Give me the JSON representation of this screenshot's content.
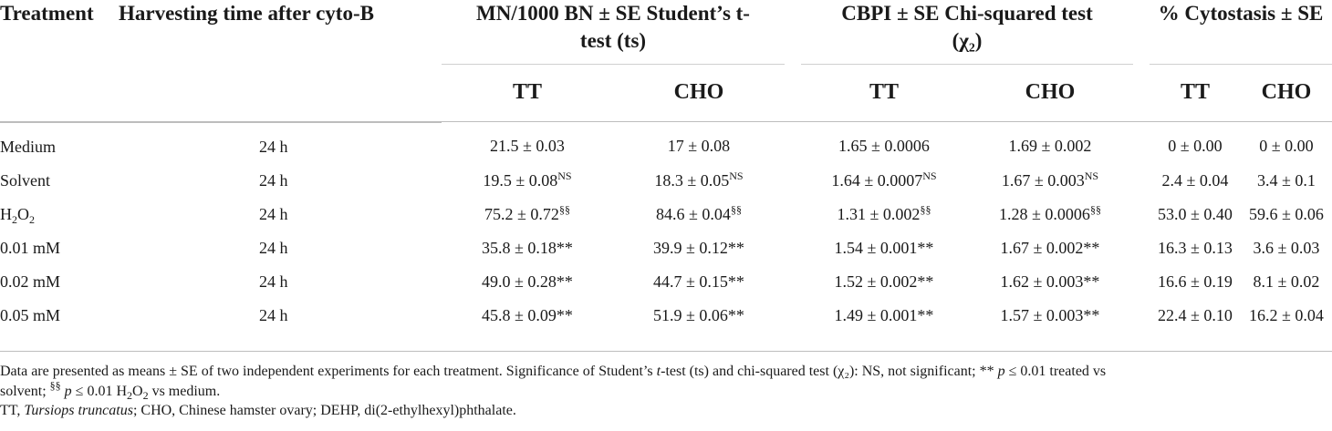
{
  "headers": {
    "treatment": "Treatment",
    "harvesting": "Harvesting time after cyto-B",
    "mn_line1": "MN/1000 BN ± SE Student’s t-",
    "mn_line2": "test (ts)",
    "cbpi_line1": "CBPI ± SE Chi-squared test",
    "cbpi_line2": "(χ₂)",
    "cyto": "% Cytostasis ± SE",
    "tt": "TT",
    "cho": "CHO"
  },
  "rows": [
    {
      "treatment": "Medium",
      "time": "24 h",
      "mn_tt": "21.5 ± 0.03",
      "mn_tt_sup": "",
      "mn_cho": "17 ± 0.08",
      "mn_cho_sup": "",
      "cbpi_tt": "1.65 ± 0.0006",
      "cbpi_tt_sup": "",
      "cbpi_cho": "1.69 ± 0.002",
      "cbpi_cho_sup": "",
      "cyto_tt": "0 ± 0.00",
      "cyto_cho": "0 ± 0.00"
    },
    {
      "treatment": "Solvent",
      "time": "24 h",
      "mn_tt": "19.5 ± 0.08",
      "mn_tt_sup": "NS",
      "mn_cho": "18.3 ± 0.05",
      "mn_cho_sup": "NS",
      "cbpi_tt": "1.64 ± 0.0007",
      "cbpi_tt_sup": "NS",
      "cbpi_cho": "1.67 ± 0.003",
      "cbpi_cho_sup": "NS",
      "cyto_tt": "2.4 ± 0.04",
      "cyto_cho": "3.4 ± 0.1"
    },
    {
      "treatment": "H",
      "treatment_sub": "2",
      "treatment_mid": "O",
      "treatment_sub2": "2",
      "time": "24 h",
      "mn_tt": "75.2 ± 0.72",
      "mn_tt_sup": "§§",
      "mn_cho": "84.6 ± 0.04",
      "mn_cho_sup": "§§",
      "cbpi_tt": "1.31 ± 0.002",
      "cbpi_tt_sup": "§§",
      "cbpi_cho": "1.28 ± 0.0006",
      "cbpi_cho_sup": "§§",
      "cyto_tt": "53.0 ± 0.40",
      "cyto_cho": "59.6 ± 0.06"
    },
    {
      "treatment": "0.01 mM",
      "time": "24 h",
      "mn_tt": "35.8 ± 0.18**",
      "mn_tt_sup": "",
      "mn_cho": "39.9 ± 0.12**",
      "mn_cho_sup": "",
      "cbpi_tt": "1.54 ± 0.001**",
      "cbpi_tt_sup": "",
      "cbpi_cho": "1.67 ± 0.002**",
      "cbpi_cho_sup": "",
      "cyto_tt": "16.3 ± 0.13",
      "cyto_cho": "3.6 ± 0.03"
    },
    {
      "treatment": "0.02 mM",
      "time": "24 h",
      "mn_tt": "49.0 ± 0.28**",
      "mn_tt_sup": "",
      "mn_cho": "44.7 ± 0.15**",
      "mn_cho_sup": "",
      "cbpi_tt": "1.52 ± 0.002**",
      "cbpi_tt_sup": "",
      "cbpi_cho": "1.62 ± 0.003**",
      "cbpi_cho_sup": "",
      "cyto_tt": "16.6 ± 0.19",
      "cyto_cho": "8.1 ± 0.02"
    },
    {
      "treatment": "0.05 mM",
      "time": "24 h",
      "mn_tt": "45.8 ± 0.09**",
      "mn_tt_sup": "",
      "mn_cho": "51.9 ± 0.06**",
      "mn_cho_sup": "",
      "cbpi_tt": "1.49 ± 0.001**",
      "cbpi_tt_sup": "",
      "cbpi_cho": "1.57 ± 0.003**",
      "cbpi_cho_sup": "",
      "cyto_tt": "22.4 ± 0.10",
      "cyto_cho": "16.2 ± 0.04"
    }
  ],
  "notes": {
    "n1_a": "Data are presented as means ± SE of two independent experiments for each treatment. Significance of Student’s ",
    "n1_t": "t",
    "n1_b": "-test (ts) and chi-squared test (χ₂): NS, not significant; ** ",
    "n1_p1": "p",
    "n1_c": " ≤ 0.01 treated vs",
    "n2_a": "solvent; ",
    "n2_sup": "§§",
    "n2_p": "p",
    "n2_b": " ≤ 0.01 H",
    "n2_sub1": "2",
    "n2_c": "O",
    "n2_sub2": "2",
    "n2_d": " vs medium.",
    "n3_a": "TT, ",
    "n3_i": "Tursiops truncatus",
    "n3_b": "; CHO, Chinese hamster ovary; DEHP, di(2-ethylhexyl)phthalate."
  }
}
